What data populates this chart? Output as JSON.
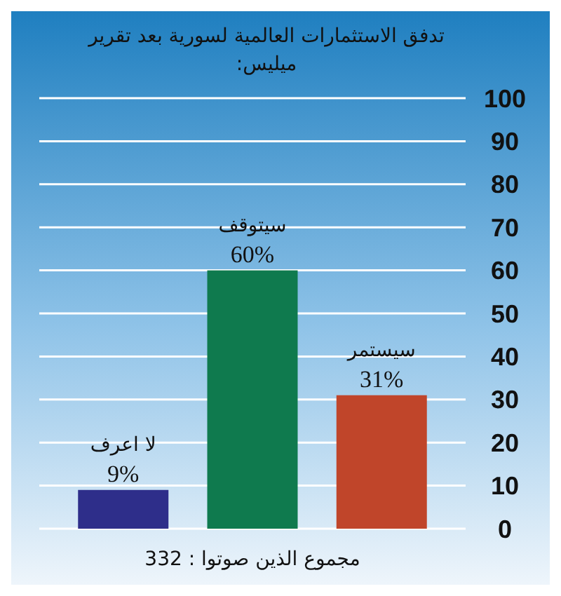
{
  "chart_data": {
    "type": "bar",
    "title": "تدفق الاستثمارات العالمية لسورية بعد تقرير ميليس:",
    "categories": [
      "لا اعرف",
      "سيتوقف",
      "سيستمر"
    ],
    "values": [
      9,
      60,
      31
    ],
    "colors": [
      "#2e2e8a",
      "#0f7a4e",
      "#c0452a"
    ],
    "value_labels": [
      "9%",
      "60%",
      "31%"
    ],
    "ylim": [
      0,
      100
    ],
    "yticks": [
      0,
      10,
      20,
      30,
      40,
      50,
      60,
      70,
      80,
      90,
      100
    ],
    "grid": "y",
    "annotations": [
      "مجموع الذين صوتوا : 332"
    ]
  }
}
